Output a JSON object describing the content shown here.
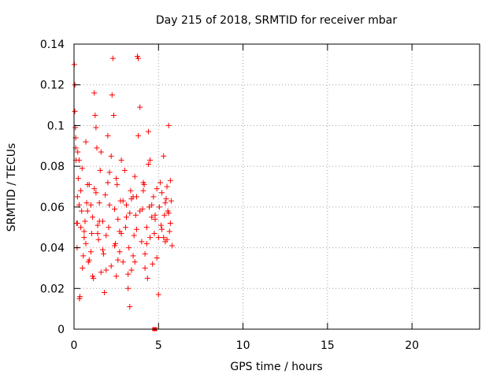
{
  "chart_data": {
    "type": "scatter",
    "title": "Day 215 of 2018, SRMTID for receiver mbar",
    "xlabel": "GPS time / hours",
    "ylabel": "SRMTID / TECUs",
    "xlim": [
      0,
      24
    ],
    "ylim": [
      0,
      0.14
    ],
    "xticks": [
      0,
      5,
      10,
      15,
      20
    ],
    "xtick_labels": [
      "0",
      "5",
      "10",
      "15",
      "20"
    ],
    "yticks": [
      0,
      0.02,
      0.04,
      0.06,
      0.08,
      0.1,
      0.12,
      0.14
    ],
    "ytick_labels": [
      "0",
      "0.02",
      "0.04",
      "0.06",
      "0.08",
      "0.1",
      "0.12",
      "0.14"
    ],
    "grid": true,
    "marker": "plus",
    "color": "#ff0000",
    "series": [
      {
        "name": "SRMTID",
        "x": [
          0.02,
          0.05,
          0.05,
          0.08,
          0.1,
          0.12,
          0.15,
          0.18,
          0.2,
          0.22,
          0.25,
          0.3,
          0.32,
          0.35,
          0.4,
          0.45,
          0.48,
          0.5,
          0.55,
          0.6,
          0.65,
          0.7,
          0.75,
          0.8,
          0.85,
          0.9,
          1.0,
          1.05,
          1.1,
          1.15,
          1.2,
          1.25,
          1.3,
          1.35,
          1.4,
          1.45,
          1.5,
          1.55,
          1.6,
          1.7,
          1.75,
          1.8,
          1.85,
          1.9,
          2.0,
          2.05,
          2.1,
          2.2,
          2.25,
          2.3,
          2.35,
          2.4,
          2.45,
          2.5,
          2.55,
          2.6,
          2.7,
          2.75,
          2.8,
          2.9,
          3.0,
          3.05,
          3.1,
          3.2,
          3.25,
          3.3,
          3.35,
          3.4,
          3.5,
          3.55,
          3.6,
          3.65,
          3.7,
          3.75,
          3.8,
          3.9,
          4.0,
          4.05,
          4.1,
          4.15,
          4.2,
          4.3,
          4.35,
          4.4,
          4.45,
          4.5,
          4.6,
          4.65,
          4.7,
          4.75,
          4.8,
          4.9,
          5.0,
          5.05,
          5.1,
          5.15,
          5.2,
          5.3,
          5.35,
          5.4,
          5.45,
          5.5,
          5.55,
          5.6,
          5.65,
          5.7,
          5.75,
          5.8,
          0.1,
          0.4,
          0.9,
          1.3,
          1.9,
          2.4,
          2.9,
          3.3,
          3.6,
          4.3,
          4.9,
          5.4,
          5.6,
          0.6,
          1.1,
          1.6,
          2.1,
          2.6,
          3.1,
          3.7,
          4.1,
          4.6,
          5.2,
          0.3,
          0.7,
          1.2,
          1.7,
          2.2,
          2.7,
          3.4,
          3.9,
          4.4,
          5.0,
          5.5,
          0.2,
          0.8,
          1.4,
          2.0,
          2.8,
          3.2,
          3.8,
          4.2,
          4.8,
          5.3,
          5.7,
          1.0,
          1.5,
          2.5,
          3.5,
          4.5
        ],
        "y": [
          0.13,
          0.12,
          0.107,
          0.099,
          0.094,
          0.083,
          0.052,
          0.04,
          0.065,
          0.087,
          0.074,
          0.061,
          0.015,
          0.016,
          0.05,
          0.058,
          0.079,
          0.03,
          0.036,
          0.045,
          0.053,
          0.042,
          0.062,
          0.058,
          0.033,
          0.071,
          0.038,
          0.047,
          0.055,
          0.025,
          0.116,
          0.105,
          0.067,
          0.089,
          0.051,
          0.044,
          0.062,
          0.078,
          0.028,
          0.053,
          0.037,
          0.018,
          0.066,
          0.046,
          0.072,
          0.05,
          0.061,
          0.031,
          0.115,
          0.133,
          0.105,
          0.059,
          0.042,
          0.026,
          0.071,
          0.054,
          0.038,
          0.063,
          0.047,
          0.033,
          0.078,
          0.05,
          0.061,
          0.02,
          0.04,
          0.057,
          0.068,
          0.029,
          0.036,
          0.046,
          0.075,
          0.056,
          0.049,
          0.134,
          0.133,
          0.109,
          0.043,
          0.059,
          0.068,
          0.071,
          0.037,
          0.05,
          0.025,
          0.097,
          0.06,
          0.045,
          0.055,
          0.032,
          0.065,
          0.047,
          0.056,
          0.035,
          0.045,
          0.06,
          0.072,
          0.051,
          0.067,
          0.085,
          0.056,
          0.043,
          0.064,
          0.07,
          0.058,
          0.1,
          0.048,
          0.073,
          0.063,
          0.041,
          0.089,
          0.068,
          0.034,
          0.099,
          0.029,
          0.041,
          0.063,
          0.011,
          0.033,
          0.042,
          0.069,
          0.062,
          0.057,
          0.048,
          0.026,
          0.087,
          0.077,
          0.034,
          0.055,
          0.065,
          0.072,
          0.061,
          0.049,
          0.083,
          0.092,
          0.069,
          0.039,
          0.085,
          0.048,
          0.064,
          0.058,
          0.081,
          0.017,
          0.044,
          0.052,
          0.071,
          0.047,
          0.095,
          0.083,
          0.027,
          0.095,
          0.03,
          0.054,
          0.045,
          0.052,
          0.061,
          0.053,
          0.074,
          0.065,
          0.083
        ]
      }
    ],
    "zero_markers": {
      "name": "zero",
      "x": [
        4.75,
        4.8
      ],
      "y": [
        0,
        0
      ]
    }
  }
}
